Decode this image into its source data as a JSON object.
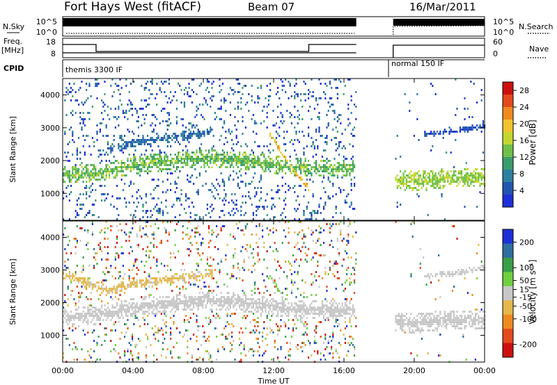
{
  "header": {
    "station": "Fort Hays West (fitACF)",
    "beam": "Beam 07",
    "date": "16/Mar/2011"
  },
  "panels": {
    "nsky": {
      "label": "N.Sky",
      "ticks": [
        "10^5",
        "10^0"
      ],
      "right_label": "N.Search",
      "right_ticks": [
        "10^5",
        "10^0"
      ]
    },
    "freq": {
      "label1": "Freq.",
      "label2": "[MHz]",
      "ticks": [
        "18",
        "8"
      ],
      "right_label": "Nave",
      "right_ticks": [
        "60",
        "0"
      ]
    },
    "cpid": {
      "label": "CPID",
      "modes": [
        "themis 3300 IF",
        "normal 150 IF"
      ]
    }
  },
  "colors": {
    "power": [
      "#2030d8",
      "#2255b0",
      "#2e7fa0",
      "#3b9e6a",
      "#6fc04a",
      "#c4d730",
      "#f2c230",
      "#f08a20",
      "#e34a1c",
      "#cc1010"
    ],
    "velocity": [
      "#cc1010",
      "#e34a1c",
      "#f08a20",
      "#e5b84a",
      "#c8c8c8",
      "#6fd040",
      "#3b9e4a",
      "#2e6fa0",
      "#2030d8"
    ]
  },
  "chart_data": [
    {
      "type": "heatmap",
      "title": "Power",
      "ylabel": "Slant Range [km]",
      "xlabel": "Time UT",
      "x_ticks": [
        "00:00",
        "04:00",
        "08:00",
        "12:00",
        "16:00",
        "20:00",
        "00:00"
      ],
      "xlim_hours": [
        0,
        24
      ],
      "y_ticks": [
        1000,
        2000,
        3000,
        4000
      ],
      "ylim": [
        180,
        4500
      ],
      "colorbar": {
        "label": "Power [dB]",
        "ticks": [
          4,
          8,
          12,
          16,
          20,
          24,
          28
        ],
        "range": [
          0,
          30
        ]
      },
      "data_gap_hours": [
        16.7,
        18.8
      ],
      "features": [
        {
          "name": "band",
          "t": [
            0.0,
            2.0,
            4.0,
            6.0,
            8.0,
            10.0,
            12.0,
            14.0,
            16.6
          ],
          "r": [
            1600,
            1650,
            1900,
            2000,
            2100,
            2050,
            1900,
            1800,
            1800
          ],
          "w": 550,
          "p": 13
        },
        {
          "name": "upper",
          "t": [
            2.5,
            4.0,
            5.5,
            7.0,
            8.5
          ],
          "r": [
            2400,
            2600,
            2700,
            2800,
            2900
          ],
          "w": 300,
          "p": 6
        },
        {
          "name": "streak",
          "t": [
            11.7,
            12.5,
            13.3,
            14.0
          ],
          "r": [
            2900,
            2200,
            1600,
            1150
          ],
          "w": 170,
          "p": 20
        },
        {
          "name": "late",
          "t": [
            18.9,
            20.0,
            22.0,
            24.0
          ],
          "r": [
            1450,
            1400,
            1500,
            1500
          ],
          "w": 600,
          "p": 15
        },
        {
          "name": "late-upper",
          "t": [
            20.5,
            22.0,
            24.0
          ],
          "r": [
            2850,
            2900,
            3100
          ],
          "w": 180,
          "p": 4
        }
      ]
    },
    {
      "type": "heatmap",
      "title": "Velocity",
      "ylabel": "Slant Range [km]",
      "xlabel": "Time UT",
      "x_ticks": [
        "00:00",
        "04:00",
        "08:00",
        "12:00",
        "16:00",
        "20:00",
        "00:00"
      ],
      "xlim_hours": [
        0,
        24
      ],
      "y_ticks": [
        1000,
        2000,
        3000,
        4000
      ],
      "ylim": [
        180,
        4500
      ],
      "colorbar": {
        "label": "Velocity [m s⁻¹]",
        "ticks": [
          200,
          100,
          50,
          15,
          -15,
          -50,
          -100,
          -200
        ],
        "range": [
          -250,
          250
        ]
      },
      "data_gap_hours": [
        16.7,
        18.8
      ],
      "features": [
        {
          "name": "band",
          "t": [
            0.0,
            2.0,
            4.0,
            6.0,
            8.0,
            10.0,
            12.0,
            14.0,
            16.6
          ],
          "r": [
            1600,
            1650,
            1900,
            2000,
            2100,
            2050,
            1900,
            1800,
            1800
          ],
          "w": 550,
          "v": -5
        },
        {
          "name": "upper",
          "t": [
            0.0,
            2.5,
            4.0,
            5.5,
            7.0,
            8.5
          ],
          "r": [
            2900,
            2400,
            2600,
            2700,
            2800,
            2900
          ],
          "w": 300,
          "v": -40
        },
        {
          "name": "streak",
          "t": [
            11.7,
            12.5,
            13.3,
            14.0
          ],
          "r": [
            2900,
            2200,
            1600,
            1150
          ],
          "w": 170,
          "v": 30
        },
        {
          "name": "late",
          "t": [
            18.9,
            20.0,
            22.0,
            24.0
          ],
          "r": [
            1450,
            1400,
            1500,
            1500
          ],
          "w": 600,
          "v": 0
        },
        {
          "name": "late-upper",
          "t": [
            20.5,
            22.0,
            24.0
          ],
          "r": [
            2850,
            2900,
            3100
          ],
          "w": 180,
          "v": -5
        }
      ]
    }
  ]
}
